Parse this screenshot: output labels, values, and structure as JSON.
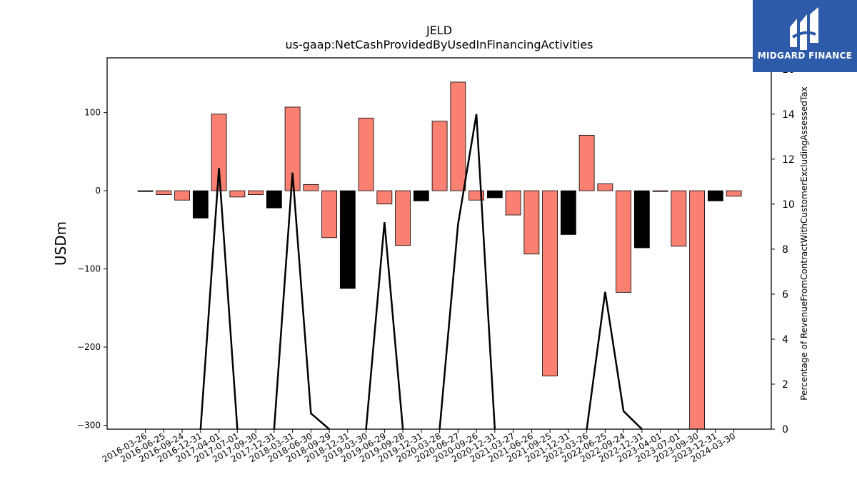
{
  "chart_data": {
    "type": "bar",
    "title": "JELD",
    "subtitle": "us-gaap:NetCashProvidedByUsedInFinancingActivities",
    "ylabel": "USDm",
    "y2label": "Percentage of RevenueFromContractWithCustomerExcludingAssessedTax",
    "ylim": [
      -305,
      170
    ],
    "y2lim": [
      0,
      16.5
    ],
    "yticks": [
      100,
      0,
      -100,
      -200,
      -300
    ],
    "yticklabels": [
      "100",
      "0",
      "−100",
      "−200",
      "−300"
    ],
    "y2ticks": [
      0,
      2,
      4,
      6,
      8,
      10,
      12,
      14,
      16
    ],
    "categories": [
      "2016-03-26",
      "2016-06-25",
      "2016-09-24",
      "2016-12-31",
      "2017-04-01",
      "2017-07-01",
      "2017-09-30",
      "2017-12-31",
      "2018-03-31",
      "2018-06-30",
      "2018-09-29",
      "2018-12-31",
      "2019-03-30",
      "2019-06-29",
      "2019-09-28",
      "2019-12-31",
      "2020-03-28",
      "2020-06-27",
      "2020-09-26",
      "2020-12-31",
      "2021-03-27",
      "2021-06-26",
      "2021-09-25",
      "2021-12-31",
      "2022-03-26",
      "2022-06-25",
      "2022-09-24",
      "2022-12-31",
      "2023-04-01",
      "2023-07-01",
      "2023-09-30",
      "2023-12-31",
      "2024-03-30"
    ],
    "series": [
      {
        "values": [
          -1,
          -5,
          -12,
          -35,
          98,
          -8,
          -5,
          -22,
          107,
          8,
          -60,
          -125,
          93,
          -17,
          -70,
          -13,
          89,
          139,
          -12,
          -9,
          -31,
          -81,
          -237,
          -56,
          71,
          9,
          -130,
          -73,
          -1,
          -71,
          -305,
          -13,
          -7
        ],
        "colors": [
          "#000000",
          "#fa8072",
          "#fa8072",
          "#000000",
          "#fa8072",
          "#fa8072",
          "#fa8072",
          "#000000",
          "#fa8072",
          "#fa8072",
          "#fa8072",
          "#000000",
          "#fa8072",
          "#fa8072",
          "#fa8072",
          "#000000",
          "#fa8072",
          "#fa8072",
          "#fa8072",
          "#000000",
          "#fa8072",
          "#fa8072",
          "#fa8072",
          "#000000",
          "#fa8072",
          "#fa8072",
          "#fa8072",
          "#000000",
          "#fa8072",
          "#fa8072",
          "#fa8072",
          "#000000",
          "#fa8072"
        ]
      },
      {
        "axis": "right",
        "type": "line",
        "values": [
          null,
          null,
          null,
          0,
          11.6,
          0,
          null,
          0,
          11.4,
          0.7,
          0,
          null,
          0,
          9.2,
          0,
          null,
          0,
          9.1,
          14.0,
          0,
          null,
          null,
          null,
          null,
          0,
          6.1,
          0.8,
          0,
          null,
          null,
          null,
          null,
          null
        ],
        "color": "#000000"
      }
    ]
  },
  "branding": {
    "logo_text": "MIDGARD FINANCE",
    "logo_color": "#2d5baa"
  }
}
